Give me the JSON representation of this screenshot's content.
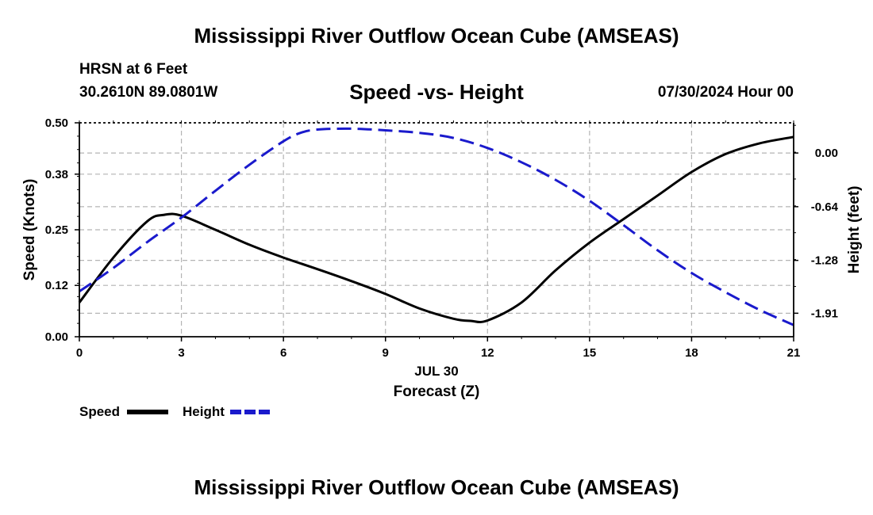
{
  "header": {
    "title": "Mississippi River Outflow Ocean Cube (AMSEAS)",
    "station": "HRSN at 6 Feet",
    "coords": "30.2610N  89.0801W",
    "datetime": "07/30/2024 Hour 00",
    "footer_title": "Mississippi River Outflow Ocean Cube (AMSEAS)"
  },
  "chart_data": {
    "type": "line",
    "title": "Speed -vs- Height",
    "xlabel": "Forecast (Z)",
    "date_label": "JUL 30",
    "ylabel_left": "Speed (Knots)",
    "ylabel_right": "Height (feet)",
    "xlim": [
      0,
      21
    ],
    "ylim_left": [
      0,
      0.5
    ],
    "ylim_right": [
      -2.19,
      0.36
    ],
    "x_ticks": [
      "0",
      "3",
      "6",
      "9",
      "12",
      "15",
      "18",
      "21"
    ],
    "y_ticks_left": [
      "0.00",
      "0.12",
      "0.25",
      "0.38",
      "0.50"
    ],
    "y_ticks_right": [
      "-1.91",
      "-1.28",
      "-0.64",
      "0.00"
    ],
    "grid": true,
    "series": [
      {
        "name": "Speed",
        "axis": "left",
        "color": "#000000",
        "style": "solid",
        "x": [
          0,
          1,
          2,
          2.5,
          3,
          4,
          5,
          6,
          7,
          8,
          9,
          10,
          11,
          11.5,
          12,
          13,
          14,
          15,
          16,
          17,
          18,
          19,
          20,
          21
        ],
        "values": [
          0.08,
          0.185,
          0.27,
          0.285,
          0.283,
          0.25,
          0.215,
          0.185,
          0.158,
          0.13,
          0.1,
          0.066,
          0.042,
          0.037,
          0.038,
          0.08,
          0.155,
          0.22,
          0.275,
          0.33,
          0.385,
          0.427,
          0.452,
          0.467
        ]
      },
      {
        "name": "Height",
        "axis": "right",
        "color": "#1a1acc",
        "style": "dashed",
        "x": [
          0,
          1,
          2,
          3,
          4,
          5,
          6,
          6.5,
          7,
          8,
          9,
          10,
          11,
          12,
          13,
          14,
          15,
          16,
          17,
          18,
          19,
          20,
          21
        ],
        "values": [
          -1.65,
          -1.37,
          -1.06,
          -0.77,
          -0.45,
          -0.14,
          0.14,
          0.24,
          0.28,
          0.29,
          0.27,
          0.24,
          0.18,
          0.06,
          -0.11,
          -0.32,
          -0.57,
          -0.86,
          -1.16,
          -1.43,
          -1.66,
          -1.87,
          -2.05
        ]
      }
    ]
  },
  "legend": {
    "speed_label": "Speed",
    "height_label": "Height"
  },
  "colors": {
    "grid": "#b4b4b4",
    "speed": "#000000",
    "height": "#1a1acc"
  }
}
